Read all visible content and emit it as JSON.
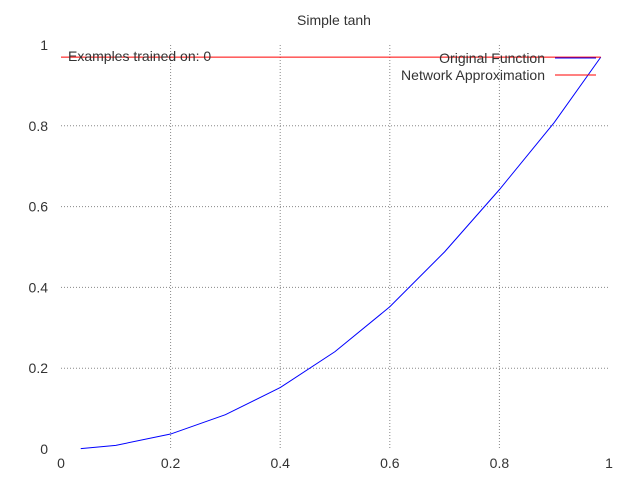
{
  "chart_data": {
    "type": "line",
    "title": "Simple tanh",
    "xlabel": "",
    "ylabel": "",
    "xlim": [
      0,
      1
    ],
    "ylim": [
      0,
      1
    ],
    "x_ticks": [
      "0",
      "0.2",
      "0.4",
      "0.6",
      "0.8",
      "1"
    ],
    "y_ticks": [
      "0",
      "0.2",
      "0.4",
      "0.6",
      "0.8",
      "1"
    ],
    "grid": true,
    "legend_position": "top-right",
    "annotation": "Examples trained on: 0",
    "series": [
      {
        "name": "Original Function",
        "color": "#0000ff",
        "x": [
          0.036,
          0.1,
          0.2,
          0.3,
          0.4,
          0.5,
          0.6,
          0.7,
          0.8,
          0.9,
          0.985
        ],
        "y": [
          0.001,
          0.009,
          0.037,
          0.085,
          0.152,
          0.241,
          0.352,
          0.488,
          0.642,
          0.808,
          0.97
        ]
      },
      {
        "name": "Network Approximation",
        "color": "#ff0000",
        "x": [
          0.0,
          0.985
        ],
        "y": [
          0.97,
          0.97
        ]
      }
    ]
  }
}
